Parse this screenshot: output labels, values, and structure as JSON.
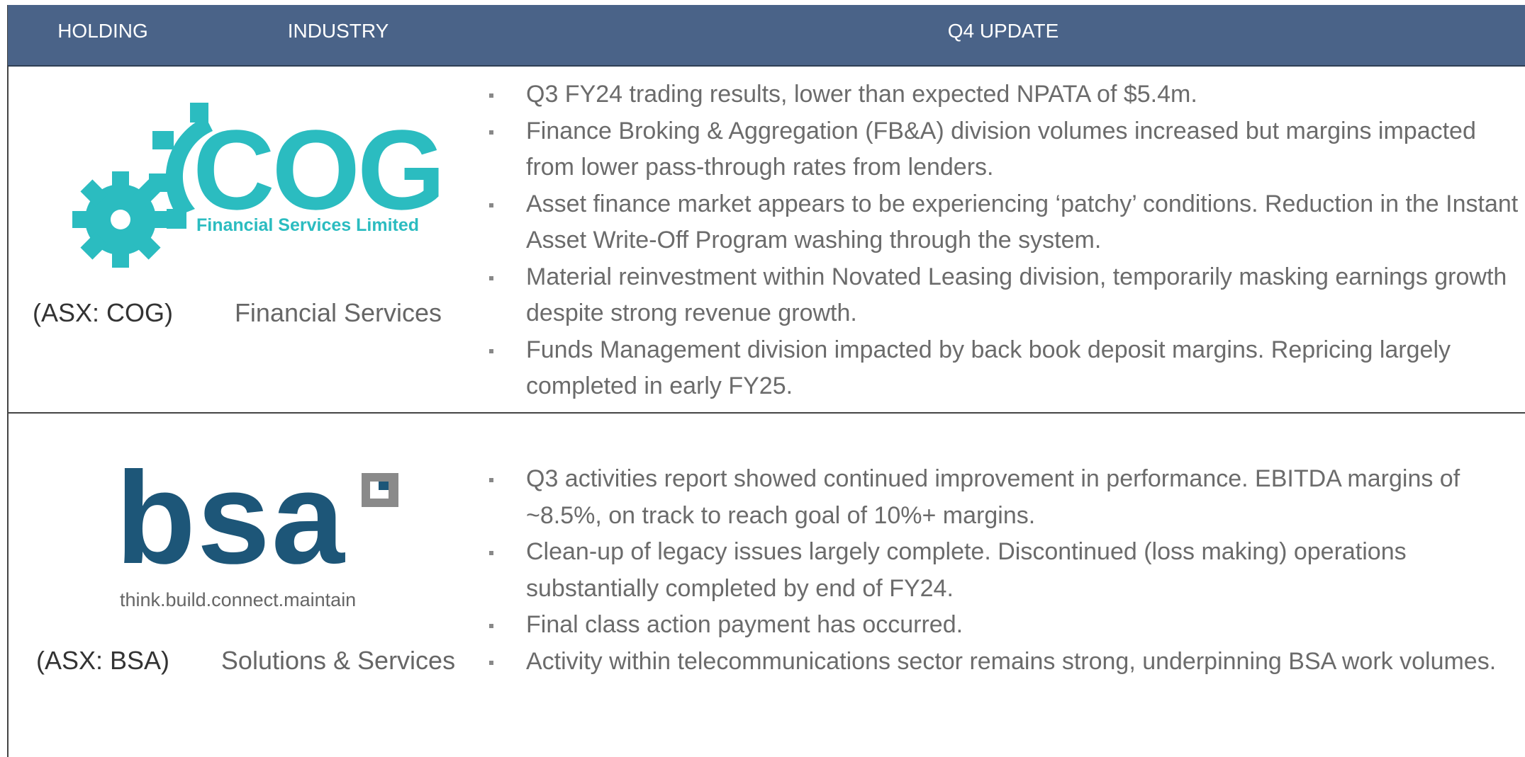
{
  "header": {
    "columns": [
      "HOLDING",
      "INDUSTRY",
      "Q4 UPDATE"
    ]
  },
  "rows": [
    {
      "logo": {
        "name": "COG",
        "tagline": "Financial Services Limited"
      },
      "holding": "(ASX: COG)",
      "industry": "Financial Services",
      "bullets": [
        "Q3 FY24 trading results, lower than expected NPATA of $5.4m.",
        "Finance Broking & Aggregation (FB&A) division volumes increased but margins impacted from lower pass-through rates from lenders.",
        "Asset finance market appears to be experiencing ‘patchy’ conditions. Reduction in the Instant Asset Write-Off Program washing through the system.",
        "Material reinvestment within Novated Leasing division, temporarily masking earnings growth despite strong revenue growth.",
        "Funds Management division impacted by back book deposit margins. Repricing largely completed in early FY25."
      ]
    },
    {
      "logo": {
        "name": "bsa",
        "tagline": "think.build.connect.maintain"
      },
      "holding": "(ASX: BSA)",
      "industry": "Solutions & Services",
      "bullets": [
        "Q3 activities report showed continued improvement in performance. EBITDA margins of ~8.5%, on track to reach goal of 10%+ margins.",
        "Clean-up of legacy issues largely complete. Discontinued (loss making) operations substantially completed by end of FY24.",
        "Final class action payment has occurred.",
        "Activity within telecommunications sector remains strong, underpinning BSA work volumes."
      ]
    }
  ]
}
